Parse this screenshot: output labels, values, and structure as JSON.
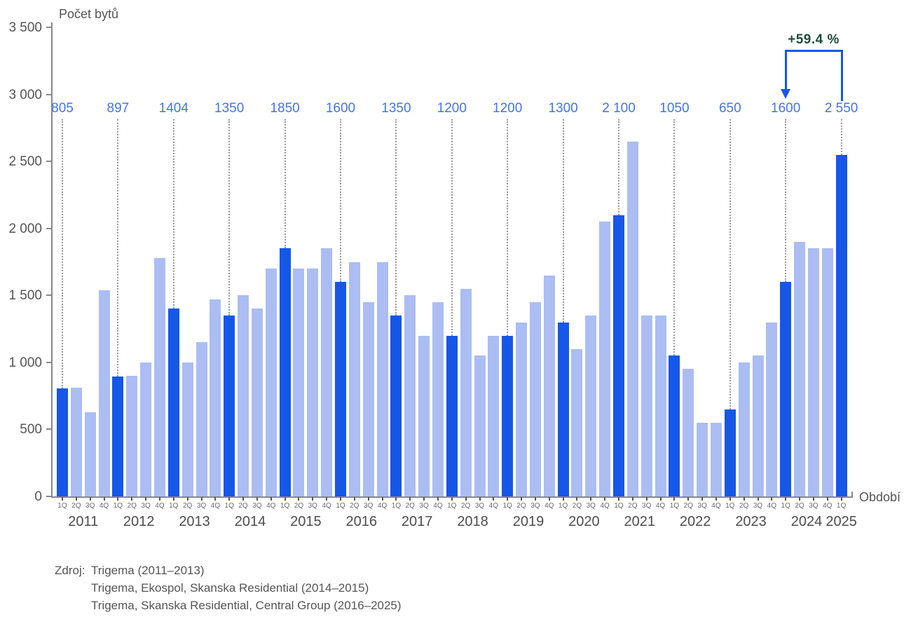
{
  "chart_data": {
    "type": "bar",
    "title": "",
    "ylabel": "Počet bytů",
    "xlabel": "Období",
    "ylim": [
      0,
      3500
    ],
    "grid": false,
    "legend": false,
    "yticks": [
      "0",
      "500",
      "1 000",
      "1 500",
      "2 000",
      "2 500",
      "3 000",
      "3 500"
    ],
    "quarter_labels": [
      "1Q",
      "2Q",
      "3Q",
      "4Q"
    ],
    "years": [
      {
        "year": "2011",
        "values": [
          805,
          810,
          630,
          1540
        ]
      },
      {
        "year": "2012",
        "values": [
          897,
          900,
          1000,
          1780
        ]
      },
      {
        "year": "2013",
        "values": [
          1404,
          1000,
          1150,
          1470
        ]
      },
      {
        "year": "2014",
        "values": [
          1350,
          1500,
          1400,
          1700
        ]
      },
      {
        "year": "2015",
        "values": [
          1850,
          1700,
          1700,
          1850
        ]
      },
      {
        "year": "2016",
        "values": [
          1600,
          1750,
          1450,
          1750
        ]
      },
      {
        "year": "2017",
        "values": [
          1350,
          1500,
          1200,
          1450
        ]
      },
      {
        "year": "2018",
        "values": [
          1200,
          1550,
          1050,
          1200
        ]
      },
      {
        "year": "2019",
        "values": [
          1200,
          1300,
          1450,
          1650
        ]
      },
      {
        "year": "2020",
        "values": [
          1300,
          1100,
          1350,
          2050
        ]
      },
      {
        "year": "2021",
        "values": [
          2100,
          2650,
          1350,
          1350
        ]
      },
      {
        "year": "2022",
        "values": [
          1050,
          950,
          550,
          550
        ]
      },
      {
        "year": "2023",
        "values": [
          650,
          1000,
          1050,
          1300
        ]
      },
      {
        "year": "2024",
        "values": [
          1600,
          1900,
          1850,
          1850
        ]
      },
      {
        "year": "2025",
        "values": [
          2550
        ]
      }
    ],
    "highlighted_quarter": "1Q",
    "q1_value_labels": [
      "805",
      "897",
      "1404",
      "1350",
      "1850",
      "1600",
      "1350",
      "1200",
      "1200",
      "1300",
      "2 100",
      "1050",
      "650",
      "1600",
      "2 550"
    ],
    "annotation": {
      "label": "+59.4 %",
      "from_label": "1600",
      "to_label": "2 550"
    },
    "colors": {
      "bar_light": "#abbdf3",
      "bar_dark": "#1657e8",
      "value_label": "#4273ee",
      "annotation_text": "#1f4e3f",
      "annotation_line": "#1657e8",
      "axis_line": "#888888",
      "tick_text": "#555555",
      "year_text": "#4d4d4d",
      "quarter_text": "#6a6a6a",
      "dotted_line": "#9b9b9b"
    }
  },
  "source": {
    "prefix": "Zdroj:",
    "lines": [
      "Trigema (2011–2013)",
      "Trigema, Ekospol, Skanska Residential (2014–2015)",
      "Trigema, Skanska Residential, Central Group (2016–2025)"
    ]
  }
}
